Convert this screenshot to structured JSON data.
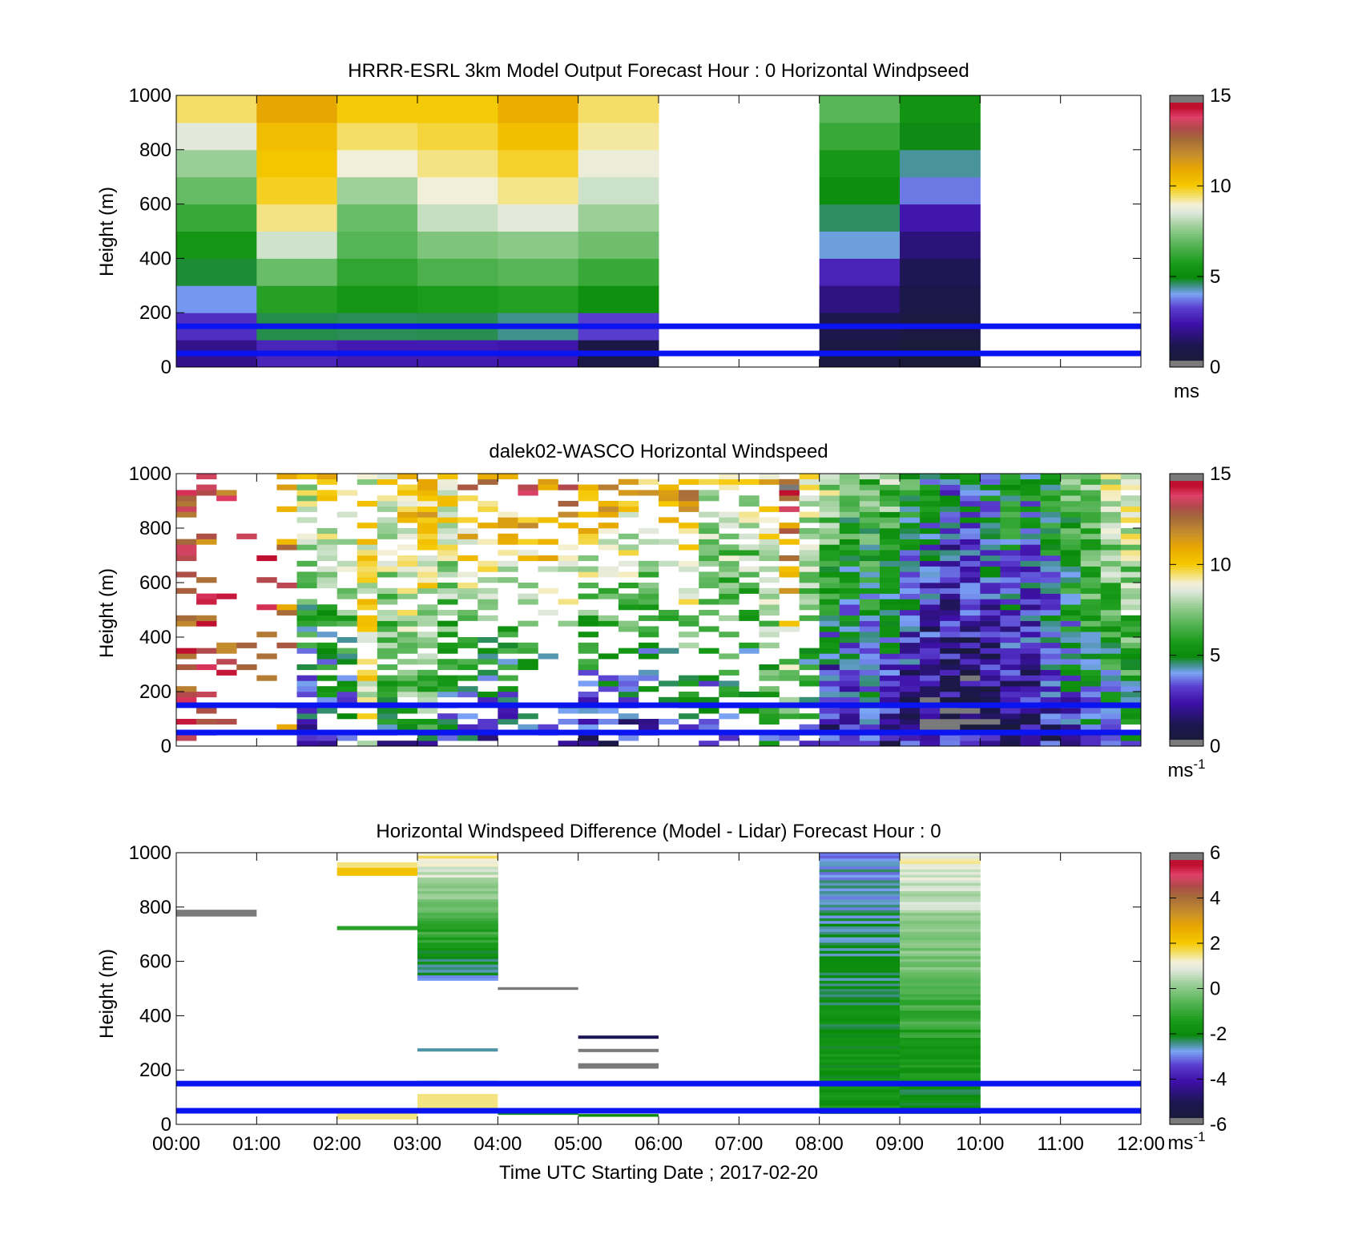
{
  "figure": {
    "xlabel": "Time UTC  Starting Date ; 2017-02-20",
    "x_tick_labels": [
      "00:00",
      "01:00",
      "02:00",
      "03:00",
      "04:00",
      "05:00",
      "06:00",
      "07:00",
      "08:00",
      "09:00",
      "10:00",
      "11:00",
      "12:00"
    ]
  },
  "chart_data": [
    {
      "type": "heatmap",
      "title": "HRRR-ESRL 3km Model Output   Forecast Hour : 0 Horizontal Windpseed",
      "ylabel": "Height (m)",
      "xlim": [
        0,
        12
      ],
      "ylim": [
        0,
        1000
      ],
      "y_ticks": [
        0,
        200,
        400,
        600,
        800,
        1000
      ],
      "colorbar": {
        "min": 0,
        "max": 15,
        "ticks": [
          0,
          5,
          10,
          15
        ],
        "unit": "ms"
      },
      "hlines": [
        150,
        50
      ],
      "hline_color": "#0a14f0",
      "columns": [
        {
          "x0": 0,
          "x1": 1,
          "height_step": 100,
          "values": [
            2.0,
            2.8,
            3.6,
            4.4,
            5.0,
            5.6,
            6.2,
            6.8,
            7.4,
            8.0,
            8.8,
            9.5
          ]
        },
        {
          "x0": 1,
          "x1": 2,
          "height_step": 100,
          "values": [
            2.8,
            4.5,
            5.5,
            6.5,
            7.3,
            8.5,
            9.3,
            9.8,
            10.0,
            10.2,
            10.4,
            11.0
          ]
        },
        {
          "x0": 2,
          "x1": 3,
          "height_step": 100,
          "values": [
            2.6,
            4.5,
            5.3,
            5.8,
            6.3,
            6.8,
            7.0,
            7.4,
            8.6,
            9.2,
            9.6,
            10.0
          ]
        },
        {
          "x0": 3,
          "x1": 4,
          "height_step": 100,
          "values": [
            2.6,
            4.5,
            5.4,
            6.2,
            6.8,
            7.4,
            8.2,
            8.8,
            9.2,
            9.5,
            9.8,
            10.0
          ]
        },
        {
          "x0": 4,
          "x1": 5,
          "height_step": 100,
          "values": [
            2.5,
            4.2,
            5.5,
            6.4,
            7.0,
            7.6,
            8.6,
            9.2,
            9.6,
            10.0,
            10.4,
            10.8
          ]
        },
        {
          "x0": 5,
          "x1": 6,
          "height_step": 100,
          "values": [
            0.8,
            2.8,
            4.8,
            5.8,
            6.5,
            7.2,
            7.7,
            8.2,
            8.6,
            9.0,
            9.3,
            9.5
          ]
        },
        {
          "x0": 8,
          "x1": 9,
          "height_step": 100,
          "values": [
            0.6,
            0.9,
            1.5,
            2.3,
            3.0,
            4.3,
            4.6,
            5.0,
            5.4,
            5.8,
            6.4,
            6.8
          ]
        },
        {
          "x0": 9,
          "x1": 10,
          "height_step": 100,
          "values": [
            0.4,
            0.6,
            0.8,
            1.0,
            1.4,
            1.8,
            2.4,
            3.5,
            4.2,
            4.6,
            5.0,
            5.4
          ]
        }
      ]
    },
    {
      "type": "heatmap",
      "title": "dalek02-WASCO  Horizontal Windspeed",
      "ylabel": "Height (m)",
      "xlim": [
        0,
        12
      ],
      "ylim": [
        0,
        1000
      ],
      "y_ticks": [
        0,
        200,
        400,
        600,
        800,
        1000
      ],
      "colorbar": {
        "min": 0,
        "max": 15,
        "ticks": [
          0,
          5,
          10,
          15
        ],
        "unit": "ms",
        "unit_sup": "-1"
      },
      "hlines": [
        150,
        50
      ],
      "hline_color": "#0a14f0",
      "time_step_hours": 0.25,
      "height_step": 20,
      "profiles": [
        {
          "t": 0.0,
          "coverage": 0.4,
          "low": 13,
          "high": 13
        },
        {
          "t": 0.25,
          "coverage": 0.35,
          "low": 13,
          "high": 13
        },
        {
          "t": 0.5,
          "coverage": 0.15,
          "low": 13,
          "high": 13
        },
        {
          "t": 0.75,
          "coverage": 0.08,
          "low": 13,
          "high": 13
        },
        {
          "t": 1.0,
          "coverage": 0.12,
          "low": 13,
          "high": 13
        },
        {
          "t": 1.25,
          "coverage": 0.25,
          "low": 12,
          "high": 12
        },
        {
          "t": 1.5,
          "coverage": 0.7,
          "low": 3,
          "high": 9
        },
        {
          "t": 1.75,
          "coverage": 0.55,
          "low": 3,
          "high": 10
        },
        {
          "t": 2.0,
          "coverage": 0.5,
          "low": 3,
          "high": 10
        },
        {
          "t": 2.25,
          "coverage": 0.6,
          "low": 9,
          "high": 9
        },
        {
          "t": 2.5,
          "coverage": 0.7,
          "low": 5,
          "high": 10
        },
        {
          "t": 2.75,
          "coverage": 0.75,
          "low": 6,
          "high": 10.5
        },
        {
          "t": 3.0,
          "coverage": 0.9,
          "low": 6,
          "high": 11
        },
        {
          "t": 3.25,
          "coverage": 0.75,
          "low": 4,
          "high": 10
        },
        {
          "t": 3.5,
          "coverage": 0.5,
          "low": 3,
          "high": 12
        },
        {
          "t": 3.75,
          "coverage": 0.5,
          "low": 2,
          "high": 12
        },
        {
          "t": 4.0,
          "coverage": 0.4,
          "low": 3,
          "high": 12
        },
        {
          "t": 4.25,
          "coverage": 0.3,
          "low": 2,
          "high": 13
        },
        {
          "t": 4.5,
          "coverage": 0.35,
          "low": 2,
          "high": 13
        },
        {
          "t": 4.75,
          "coverage": 0.35,
          "low": 3,
          "high": 13
        },
        {
          "t": 5.0,
          "coverage": 0.4,
          "low": 2,
          "high": 12
        },
        {
          "t": 5.25,
          "coverage": 0.45,
          "low": 2,
          "high": 12
        },
        {
          "t": 5.5,
          "coverage": 0.55,
          "low": 2,
          "high": 11
        },
        {
          "t": 5.75,
          "coverage": 0.5,
          "low": 2,
          "high": 11
        },
        {
          "t": 6.0,
          "coverage": 0.35,
          "low": 3,
          "high": 11
        },
        {
          "t": 6.25,
          "coverage": 0.4,
          "low": 4,
          "high": 12
        },
        {
          "t": 6.5,
          "coverage": 0.45,
          "low": 3,
          "high": 9
        },
        {
          "t": 6.75,
          "coverage": 0.55,
          "low": 4,
          "high": 9
        },
        {
          "t": 7.0,
          "coverage": 0.5,
          "low": 4,
          "high": 9
        },
        {
          "t": 7.25,
          "coverage": 0.55,
          "low": 5,
          "high": 10
        },
        {
          "t": 7.5,
          "coverage": 0.55,
          "low": 5,
          "high": 14
        },
        {
          "t": 7.75,
          "coverage": 0.7,
          "low": 4,
          "high": 9
        },
        {
          "t": 8.0,
          "coverage": 0.95,
          "low": 1.5,
          "high": 8.5
        },
        {
          "t": 8.25,
          "coverage": 1.0,
          "low": 2,
          "high": 7
        },
        {
          "t": 8.5,
          "coverage": 1.0,
          "low": 3,
          "high": 7
        },
        {
          "t": 8.75,
          "coverage": 1.0,
          "low": 2,
          "high": 7.5
        },
        {
          "t": 9.0,
          "coverage": 1.0,
          "low": 1.5,
          "high": 6
        },
        {
          "t": 9.25,
          "coverage": 1.0,
          "low": 1,
          "high": 5
        },
        {
          "t": 9.5,
          "coverage": 1.0,
          "low": 1,
          "high": 4
        },
        {
          "t": 9.75,
          "coverage": 1.0,
          "low": 0.6,
          "high": 4.5
        },
        {
          "t": 10.0,
          "coverage": 1.0,
          "low": 1,
          "high": 5
        },
        {
          "t": 10.25,
          "coverage": 1.0,
          "low": 1,
          "high": 6
        },
        {
          "t": 10.5,
          "coverage": 1.0,
          "low": 1.5,
          "high": 5
        },
        {
          "t": 10.75,
          "coverage": 1.0,
          "low": 2,
          "high": 6
        },
        {
          "t": 11.0,
          "coverage": 1.0,
          "low": 3,
          "high": 7
        },
        {
          "t": 11.25,
          "coverage": 1.0,
          "low": 4,
          "high": 8
        },
        {
          "t": 11.5,
          "coverage": 1.0,
          "low": 4,
          "high": 9
        },
        {
          "t": 11.75,
          "coverage": 0.95,
          "low": 4.5,
          "high": 9.5
        }
      ]
    },
    {
      "type": "heatmap",
      "title": "Horizontal Windspeed Difference (Model - Lidar) Forecast Hour : 0",
      "ylabel": "Height (m)",
      "xlim": [
        0,
        12
      ],
      "ylim": [
        0,
        1000
      ],
      "y_ticks": [
        0,
        200,
        400,
        600,
        800,
        1000
      ],
      "colorbar": {
        "min": -6,
        "max": 6,
        "ticks": [
          -6,
          -4,
          -2,
          0,
          2,
          4,
          6
        ],
        "unit": "ms",
        "unit_sup": "-1"
      },
      "hlines": [
        150,
        50
      ],
      "hline_color": "#0a14f0",
      "bands": [
        {
          "x0": 0,
          "x1": 1,
          "y0": 765,
          "y1": 790,
          "v": 6
        },
        {
          "x0": 2,
          "x1": 3,
          "y0": 915,
          "y1": 945,
          "v": 2.2
        },
        {
          "x0": 2,
          "x1": 3,
          "y0": 945,
          "y1": 965,
          "v": 1.5
        },
        {
          "x0": 2,
          "x1": 3,
          "y0": 715,
          "y1": 730,
          "v": -1.2
        },
        {
          "x0": 2,
          "x1": 3,
          "y0": 18,
          "y1": 40,
          "v": 1.5
        },
        {
          "x0": 3,
          "x1": 4,
          "y0": 58,
          "y1": 112,
          "v": 1.5
        },
        {
          "x0": 3,
          "x1": 4,
          "y0": 268,
          "y1": 280,
          "v": -2.5
        },
        {
          "x0": 3,
          "x1": 4,
          "y0": 150,
          "y1": 162,
          "v": 0.8
        },
        {
          "x0": 4,
          "x1": 5,
          "y0": 495,
          "y1": 505,
          "v": 6
        },
        {
          "x0": 4,
          "x1": 5,
          "y0": 35,
          "y1": 45,
          "v": -1.5
        },
        {
          "x0": 5,
          "x1": 6,
          "y0": 315,
          "y1": 327,
          "v": -5
        },
        {
          "x0": 5,
          "x1": 6,
          "y0": 266,
          "y1": 278,
          "v": 6
        },
        {
          "x0": 5,
          "x1": 6,
          "y0": 205,
          "y1": 225,
          "v": 6
        },
        {
          "x0": 5,
          "x1": 6,
          "y0": 28,
          "y1": 38,
          "v": -2.0
        }
      ],
      "columns": [
        {
          "x0": 3,
          "x1": 4,
          "y0": 530,
          "y1": 1000,
          "height_step": 10,
          "v_low": -2.6,
          "v_high": 1.4
        },
        {
          "x0": 8,
          "x1": 9,
          "y0": 40,
          "y1": 1000,
          "height_step": 10,
          "v_low": -1.5,
          "v_high": -2.8
        },
        {
          "x0": 9,
          "x1": 10,
          "y0": 40,
          "y1": 1000,
          "height_step": 10,
          "v_low": -2.2,
          "v_high": 1.2
        }
      ]
    }
  ]
}
